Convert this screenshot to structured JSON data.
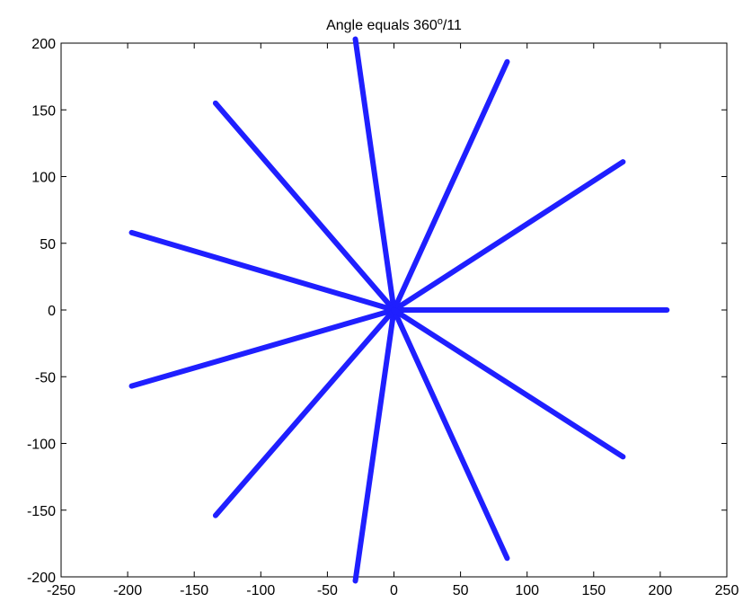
{
  "chart_data": {
    "type": "line",
    "title": "Angle equals 360",
    "title_superscript": "o",
    "title_suffix": "/11",
    "xlabel": "",
    "ylabel": "",
    "xlim": [
      -250,
      250
    ],
    "ylim": [
      -200,
      200
    ],
    "xticks": [
      -250,
      -200,
      -150,
      -100,
      -50,
      0,
      50,
      100,
      150,
      200,
      250
    ],
    "yticks": [
      -200,
      -150,
      -100,
      -50,
      0,
      50,
      100,
      150,
      200
    ],
    "grid": false,
    "line_color": "#1f1fff",
    "center": [
      0,
      0
    ],
    "spokes": [
      {
        "x": 205,
        "y": 0
      },
      {
        "x": 172,
        "y": 111
      },
      {
        "x": 85,
        "y": 186
      },
      {
        "x": -29,
        "y": 203
      },
      {
        "x": -134,
        "y": 155
      },
      {
        "x": -197,
        "y": 58
      },
      {
        "x": -197,
        "y": -57
      },
      {
        "x": -134,
        "y": -154
      },
      {
        "x": -29,
        "y": -203
      },
      {
        "x": 85,
        "y": -186
      },
      {
        "x": 172,
        "y": -110
      }
    ]
  }
}
